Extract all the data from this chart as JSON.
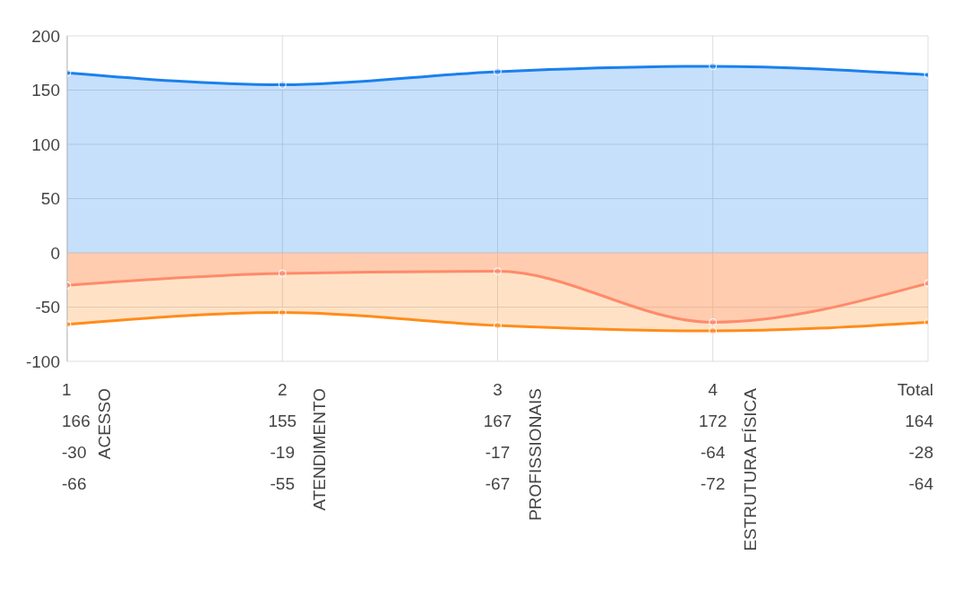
{
  "chart_data": {
    "type": "area",
    "categories": [
      "1",
      "2",
      "3",
      "4",
      "Total"
    ],
    "series": [
      {
        "color": "#1a80ee",
        "values": [
          166,
          155,
          167,
          172,
          164
        ]
      },
      {
        "color": "#ff8a85",
        "values": [
          -30,
          -19,
          -17,
          -64,
          -28
        ]
      },
      {
        "color": "#ff8c1a",
        "values": [
          -66,
          -55,
          -67,
          -72,
          -64
        ]
      }
    ],
    "ylim": [
      -100,
      200
    ],
    "yticks": [
      -100,
      -50,
      0,
      50,
      100,
      150,
      200
    ],
    "grid": true,
    "marker": "circle",
    "line_style": "solid",
    "data_labels": true,
    "legend": false,
    "annotations": [
      "ACESSO",
      "ATENDIMENTO",
      "PROFISSIONAIS",
      "ESTRUTURA FÍSICA"
    ]
  }
}
